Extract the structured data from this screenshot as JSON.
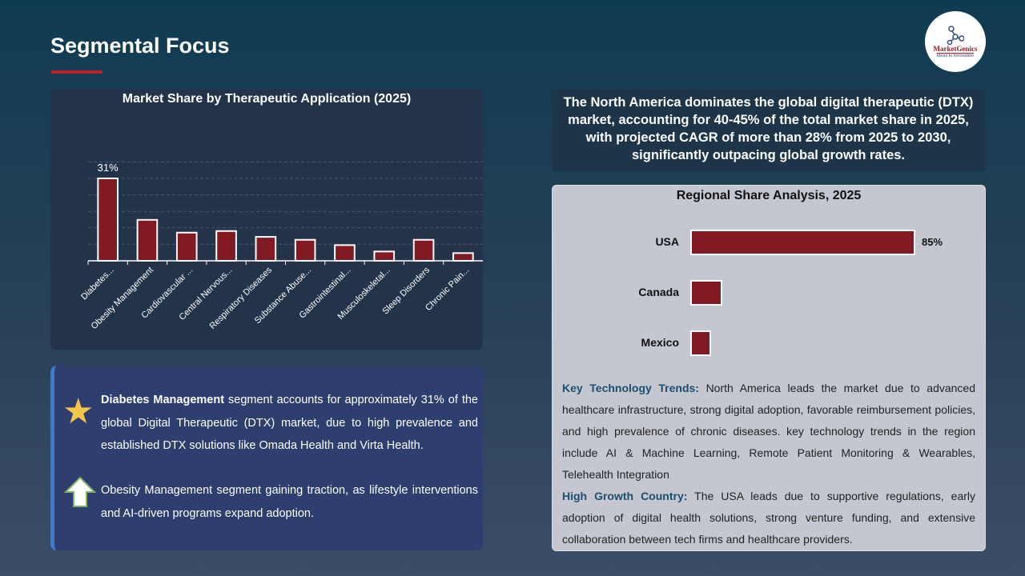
{
  "page": {
    "title": "Segmental Focus",
    "logo_text": "MarketGenics",
    "logo_tagline": "Ideas to Innovation"
  },
  "chart_data": [
    {
      "type": "bar",
      "title": "Market Share by Therapeutic Application (2025)",
      "categories": [
        "Diabetes...",
        "Obesity Management",
        "Cardiovascular ...",
        "Central Nervous...",
        "Respiratory Diseases",
        "Substance Abuse...",
        "Gastrointestinal...",
        "Musculoskeletal...",
        "Sleep Disorders",
        "Chronic Pain..."
      ],
      "values": [
        31,
        15.4,
        10.6,
        11.2,
        9.0,
        7.9,
        5.9,
        3.5,
        7.9,
        2.9
      ],
      "data_labels": [
        "31%",
        "",
        "",
        "",
        "",
        "",
        "",
        "",
        "",
        ""
      ],
      "unit": "%",
      "grid": true,
      "bar_color": "#821a24"
    },
    {
      "type": "bar",
      "orientation": "horizontal",
      "title": "Regional Share Analysis, 2025",
      "categories": [
        "USA",
        "Canada",
        "Mexico"
      ],
      "values": [
        85,
        12,
        8
      ],
      "data_labels": [
        "85%",
        "",
        ""
      ],
      "unit": "%",
      "bar_color": "#821a24"
    }
  ],
  "bullets": [
    {
      "bold": "Diabetes Management",
      "text": " segment accounts for approximately 31% of the global Digital Therapeutic (DTX) market, due to high prevalence and established DTX solutions like Omada Health and Virta Health.",
      "icon": "star-icon"
    },
    {
      "bold": "",
      "text": "Obesity Management segment gaining traction, as lifestyle interventions and AI-driven programs expand adoption.",
      "icon": "up-arrow-icon"
    }
  ],
  "summary": "The North America dominates the global digital therapeutic (DTX) market, accounting for 40-45% of the total market share in 2025, with projected CAGR of more than 28% from 2025 to 2030, significantly outpacing global growth rates.",
  "trends": {
    "label1": "Key Technology Trends:",
    "text1": " North America leads the market due to advanced healthcare infrastructure, strong digital adoption, favorable reimbursement policies, and high prevalence of chronic diseases. key technology trends in the region include AI & Machine Learning, Remote Patient Monitoring & Wearables, Telehealth Integration",
    "label2": "High Growth Country:",
    "text2": " The USA leads due to supportive regulations, early adoption of digital health solutions, strong venture funding, and extensive collaboration between tech firms and healthcare providers."
  }
}
